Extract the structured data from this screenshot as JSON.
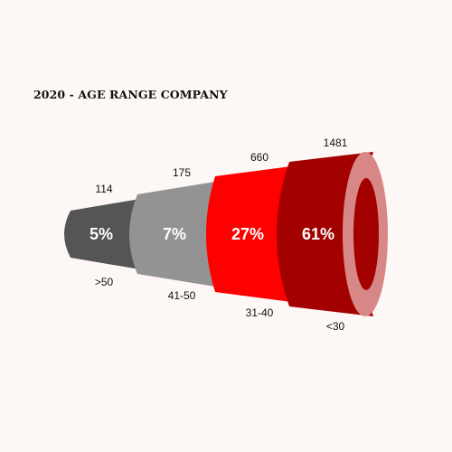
{
  "chart_data": {
    "type": "bar",
    "title": "2020 - AGE RANGE COMPANY",
    "categories": [
      ">50",
      "41-50",
      "31-40",
      "<30"
    ],
    "values": [
      114,
      175,
      660,
      1481
    ],
    "percent_labels": [
      "5%",
      "7%",
      "27%",
      "61%"
    ],
    "colors": [
      "#555555",
      "#939393",
      "#ff0000",
      "#a30000"
    ],
    "accent_colors": {
      "ring_outer": "#d88787",
      "ring_inner": "#a30000"
    }
  }
}
